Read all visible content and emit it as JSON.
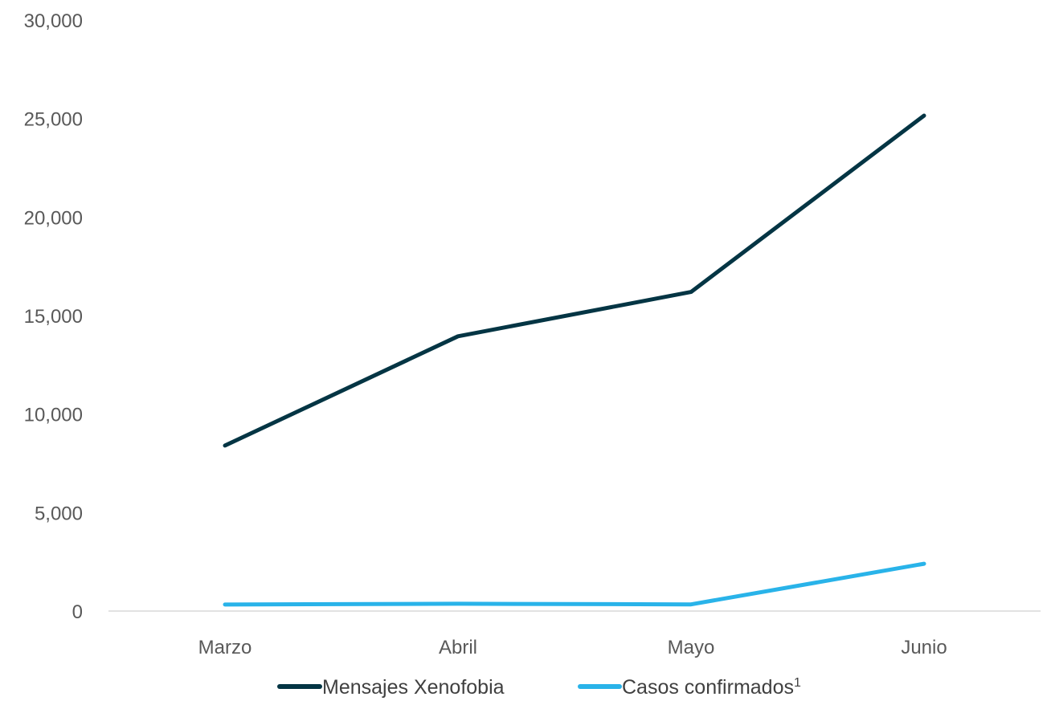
{
  "chart_data": {
    "type": "line",
    "categories": [
      "Marzo",
      "Abril",
      "Mayo",
      "Junio"
    ],
    "series": [
      {
        "name": "Mensajes Xenofobia",
        "values": [
          8400,
          13950,
          16200,
          25150
        ],
        "color": "#043544"
      },
      {
        "name": "Casos confirmados",
        "name_sup": "1",
        "values": [
          330,
          370,
          340,
          2400
        ],
        "color": "#29B3E9"
      }
    ],
    "yticks": [
      "0",
      "5,000",
      "10,000",
      "15,000",
      "20,000",
      "25,000",
      "30,000"
    ],
    "ylim": [
      0,
      30000
    ],
    "grid": false,
    "legend": "bottom"
  }
}
